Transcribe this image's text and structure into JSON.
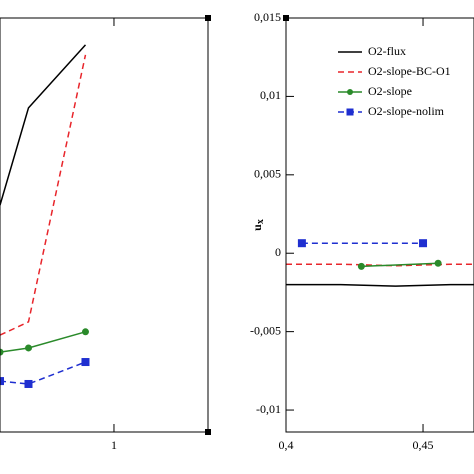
{
  "chart_data": [
    {
      "type": "line",
      "xlim": [
        0.6,
        1.33
      ],
      "ylim": [
        0,
        1
      ],
      "xticks": [
        1
      ],
      "series": [
        {
          "color": "#000000",
          "dashed": false,
          "marker": null,
          "x": [
            0.6,
            0.7,
            0.9
          ],
          "values": [
            0.548,
            0.783,
            0.935
          ]
        },
        {
          "color": "#e8252b",
          "dashed": true,
          "marker": null,
          "x": [
            0.6,
            0.7,
            0.9
          ],
          "values": [
            0.234,
            0.266,
            0.911
          ]
        },
        {
          "color": "#2a8a2a",
          "dashed": false,
          "marker": "circle",
          "x": [
            0.6,
            0.7,
            0.9
          ],
          "values": [
            0.193,
            0.203,
            0.242
          ]
        },
        {
          "color": "#1f2fd0",
          "dashed": true,
          "marker": "square",
          "x": [
            0.6,
            0.7,
            0.9
          ],
          "values": [
            0.123,
            0.116,
            0.169
          ]
        }
      ]
    },
    {
      "type": "line",
      "ylabel": "u",
      "ylabel_subscript": "x",
      "xlim": [
        0.4,
        0.4686
      ],
      "ylim": [
        -0.0114,
        0.015
      ],
      "xticks": [
        {
          "value": 0.4,
          "label": "0,4"
        },
        {
          "value": 0.45,
          "label": "0,45"
        }
      ],
      "yticks": [
        {
          "value": 0.015,
          "label": "0,015"
        },
        {
          "value": 0.01,
          "label": "0,01"
        },
        {
          "value": 0.005,
          "label": "0,005"
        },
        0,
        {
          "value": -0.005,
          "label": "-0,005"
        },
        {
          "value": -0.01,
          "label": "-0,01"
        }
      ],
      "series": [
        {
          "name": "O2-flux",
          "color": "#000000",
          "dashed": false,
          "marker": null,
          "x": [
            0.4,
            0.42,
            0.44,
            0.46,
            0.4686
          ],
          "values": [
            -0.002,
            -0.002,
            -0.0021,
            -0.002,
            -0.002
          ]
        },
        {
          "name": "O2-slope-BC-O1",
          "color": "#e8252b",
          "dashed": true,
          "marker": null,
          "x": [
            0.4,
            0.42,
            0.44,
            0.46,
            0.4686
          ],
          "values": [
            -0.0007,
            -0.0007,
            -0.0008,
            -0.0007,
            -0.0007
          ]
        },
        {
          "name": "O2-slope",
          "color": "#2a8a2a",
          "dashed": false,
          "marker": "circle",
          "x": [
            0.4275,
            0.4555
          ],
          "values": [
            -0.00084,
            -0.00064
          ]
        },
        {
          "name": "O2-slope-nolim",
          "color": "#1f2fd0",
          "dashed": true,
          "marker": "square",
          "x": [
            0.4058,
            0.45
          ],
          "values": [
            0.00064,
            0.00064
          ]
        }
      ]
    }
  ]
}
